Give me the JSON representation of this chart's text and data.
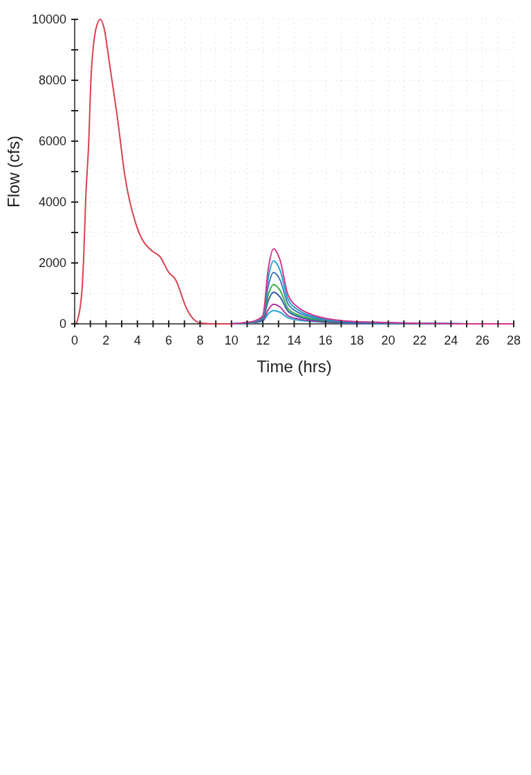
{
  "chart_data": {
    "type": "line",
    "xlabel": "Time (hrs)",
    "ylabel": "Flow (cfs)",
    "xlim": [
      0,
      28
    ],
    "ylim": [
      0,
      10000
    ],
    "xticks": [
      0,
      {
        "value": 1,
        "label": null
      },
      2,
      {
        "value": 3,
        "label": null
      },
      4,
      {
        "value": 5,
        "label": null
      },
      6,
      {
        "value": 7,
        "label": null
      },
      8,
      {
        "value": 9,
        "label": null
      },
      10,
      {
        "value": 11,
        "label": null
      },
      12,
      {
        "value": 13,
        "label": null
      },
      14,
      {
        "value": 15,
        "label": null
      },
      16,
      {
        "value": 17,
        "label": null
      },
      18,
      {
        "value": 19,
        "label": null
      },
      20,
      {
        "value": 21,
        "label": null
      },
      22,
      {
        "value": 23,
        "label": null
      },
      24,
      {
        "value": 25,
        "label": null
      },
      26,
      {
        "value": 27,
        "label": null
      },
      28
    ],
    "yticks": [
      0,
      {
        "value": 1000,
        "label": null
      },
      2000,
      {
        "value": 3000,
        "label": null
      },
      4000,
      {
        "value": 5000,
        "label": null
      },
      6000,
      {
        "value": 7000,
        "label": null
      },
      8000,
      {
        "value": 9000,
        "label": null
      },
      10000
    ],
    "grid": true,
    "series": [
      {
        "color": "#d8404f",
        "x": [
          0.1,
          0.45,
          0.58,
          0.7,
          0.9,
          1.03,
          1.36,
          1.64,
          1.88,
          2.2,
          2.7,
          3.24,
          3.88,
          4.33,
          4.9,
          5.45,
          6.0,
          6.4,
          7.15,
          7.5,
          8,
          9,
          10
        ],
        "values": [
          0,
          1000,
          2260,
          4040,
          6010,
          7930,
          9700,
          10000,
          9700,
          8630,
          6870,
          4740,
          3320,
          2750,
          2410,
          2200,
          1690,
          1480,
          490,
          200,
          30,
          0,
          0
        ]
      },
      {
        "color": "#d6338a",
        "x": [
          10,
          11,
          11.5,
          12,
          12.35,
          12.68,
          13.1,
          13.6,
          14.3,
          15.1,
          16.1,
          17.1,
          20,
          25,
          28
        ],
        "values": [
          0,
          50,
          100,
          270,
          1820,
          2460,
          2090,
          960,
          520,
          310,
          170,
          100,
          40,
          0,
          0
        ]
      },
      {
        "color": "#1ea0d0",
        "x": [
          10,
          11,
          11.5,
          12,
          12.35,
          12.68,
          13.1,
          13.6,
          14.3,
          15.1,
          16.1,
          17.1,
          20,
          25
        ],
        "values": [
          0,
          40,
          90,
          240,
          1530,
          2070,
          1760,
          810,
          440,
          260,
          150,
          90,
          40,
          0
        ]
      },
      {
        "color": "#3a78c0",
        "x": [
          10,
          11,
          11.5,
          12,
          12.35,
          12.68,
          13.1,
          13.6,
          14.3,
          15.1,
          16.1,
          17.1,
          20,
          25
        ],
        "values": [
          0,
          40,
          80,
          210,
          1250,
          1690,
          1440,
          660,
          360,
          220,
          120,
          70,
          30,
          0
        ]
      },
      {
        "color": "#3aab48",
        "x": [
          10,
          11,
          11.5,
          12,
          12.35,
          12.68,
          13.1,
          13.6,
          14.3,
          15.1,
          16.1,
          17.1
        ],
        "values": [
          0,
          30,
          70,
          180,
          960,
          1290,
          1100,
          510,
          280,
          170,
          100,
          60
        ]
      },
      {
        "color": "#2a5ca8",
        "x": [
          10,
          11,
          11.5,
          12,
          12.35,
          12.68,
          13.1,
          13.6,
          14.3,
          15.1,
          16.1,
          17.1,
          20,
          25
        ],
        "values": [
          0,
          30,
          60,
          160,
          770,
          1040,
          880,
          420,
          230,
          140,
          80,
          50,
          20,
          0
        ]
      },
      {
        "color": "#b0369c",
        "x": [
          10,
          11,
          11.5,
          12,
          12.35,
          12.68,
          13.1,
          13.6,
          14.3,
          15.1,
          16.1,
          17.1,
          20,
          25
        ],
        "values": [
          0,
          20,
          50,
          120,
          470,
          640,
          550,
          270,
          160,
          100,
          60,
          40,
          20,
          0
        ]
      },
      {
        "color": "#20a8d8",
        "x": [
          10,
          11,
          11.5,
          12,
          12.35,
          12.68,
          13.1,
          13.6,
          14.3,
          15.1,
          16.1,
          17.1,
          20,
          25
        ],
        "values": [
          0,
          20,
          40,
          90,
          330,
          440,
          380,
          200,
          120,
          80,
          50,
          30,
          10,
          0
        ]
      }
    ]
  }
}
